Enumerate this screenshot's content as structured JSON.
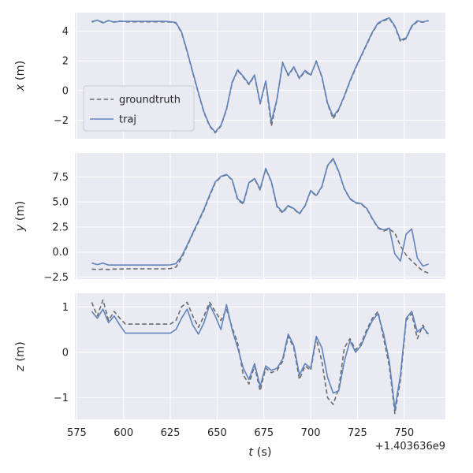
{
  "figure": {
    "xlabel": "t (s)",
    "x_offset_label": "+1.403636e9",
    "background": "#ffffff",
    "panel_background": "#eaeaf2",
    "grid_color": "#ffffff",
    "text_color": "#262626",
    "legend_face": "#eaeaf2",
    "legend_edge": "#cbcbd6"
  },
  "legend": {
    "items": [
      {
        "label": "groundtruth",
        "color": "#6b6b6b",
        "dashed": true
      },
      {
        "label": "traj",
        "color": "#5f84bb",
        "dashed": false
      }
    ]
  },
  "chart_data": [
    {
      "type": "line",
      "id": "x",
      "ylabel": "x (m)",
      "xlim": [
        574,
        772
      ],
      "ylim": [
        -3.25,
        5.25
      ],
      "x_ticks": [
        575,
        600,
        625,
        650,
        675,
        700,
        725,
        750
      ],
      "x_tick_labels": [
        "575",
        "600",
        "625",
        "650",
        "675",
        "700",
        "725",
        "750"
      ],
      "y_ticks": [
        -2,
        0,
        2,
        4
      ],
      "y_tick_labels": [
        "−2",
        "0",
        "2",
        "4"
      ],
      "x": [
        583,
        586,
        589,
        592,
        595,
        598,
        601,
        604,
        607,
        610,
        613,
        616,
        619,
        622,
        625,
        628,
        631,
        634,
        637,
        640,
        643,
        646,
        649,
        652,
        655,
        658,
        661,
        664,
        667,
        670,
        673,
        676,
        679,
        682,
        685,
        688,
        691,
        694,
        697,
        700,
        703,
        706,
        709,
        712,
        715,
        718,
        721,
        724,
        727,
        730,
        733,
        736,
        739,
        742,
        745,
        748,
        751,
        754,
        757,
        760,
        763
      ],
      "series": [
        {
          "name": "groundtruth",
          "color": "#6b6b6b",
          "dash": "5.5,3.3",
          "values": [
            4.65,
            4.72,
            4.6,
            4.7,
            4.62,
            4.68,
            4.63,
            4.63,
            4.63,
            4.63,
            4.63,
            4.63,
            4.63,
            4.63,
            4.62,
            4.55,
            3.9,
            2.6,
            1.2,
            -0.2,
            -1.5,
            -2.4,
            -2.85,
            -2.4,
            -1.3,
            0.5,
            1.35,
            0.9,
            0.4,
            1.0,
            -0.9,
            0.6,
            -2.4,
            -0.6,
            1.9,
            1.0,
            1.55,
            0.8,
            1.3,
            1.0,
            2.0,
            0.9,
            -0.9,
            -1.9,
            -1.3,
            -0.4,
            0.6,
            1.5,
            2.3,
            3.1,
            3.9,
            4.5,
            4.7,
            4.85,
            4.3,
            3.3,
            3.5,
            4.3,
            4.65,
            4.6,
            4.7
          ]
        },
        {
          "name": "traj",
          "color": "#5f84bb",
          "dash": "",
          "values": [
            4.6,
            4.75,
            4.55,
            4.72,
            4.6,
            4.66,
            4.66,
            4.66,
            4.66,
            4.66,
            4.66,
            4.66,
            4.66,
            4.66,
            4.64,
            4.58,
            3.95,
            2.65,
            1.25,
            -0.15,
            -1.45,
            -2.35,
            -2.8,
            -2.35,
            -1.25,
            0.55,
            1.4,
            0.95,
            0.45,
            1.05,
            -0.85,
            0.65,
            -2.1,
            -0.55,
            1.85,
            1.05,
            1.6,
            0.85,
            1.35,
            1.05,
            1.95,
            0.95,
            -0.85,
            -1.75,
            -1.25,
            -0.35,
            0.65,
            1.55,
            2.35,
            3.15,
            3.95,
            4.55,
            4.75,
            4.9,
            4.35,
            3.4,
            3.55,
            4.35,
            4.7,
            4.62,
            4.72
          ]
        }
      ]
    },
    {
      "type": "line",
      "id": "y",
      "ylabel": "y (m)",
      "xlim": [
        574,
        772
      ],
      "ylim": [
        -2.7,
        9.9
      ],
      "x_ticks": [
        575,
        600,
        625,
        650,
        675,
        700,
        725,
        750
      ],
      "x_tick_labels": [
        "575",
        "600",
        "625",
        "650",
        "675",
        "700",
        "725",
        "750"
      ],
      "y_ticks": [
        -2.5,
        0.0,
        2.5,
        5.0,
        7.5
      ],
      "y_tick_labels": [
        "−2.5",
        "0.0",
        "2.5",
        "5.0",
        "7.5"
      ],
      "x": [
        583,
        586,
        589,
        592,
        595,
        598,
        601,
        604,
        607,
        610,
        613,
        616,
        619,
        622,
        625,
        628,
        631,
        634,
        637,
        640,
        643,
        646,
        649,
        652,
        655,
        658,
        661,
        664,
        667,
        670,
        673,
        676,
        679,
        682,
        685,
        688,
        691,
        694,
        697,
        700,
        703,
        706,
        709,
        712,
        715,
        718,
        721,
        724,
        727,
        730,
        733,
        736,
        739,
        742,
        745,
        748,
        751,
        754,
        757,
        760,
        763
      ],
      "series": [
        {
          "name": "groundtruth",
          "color": "#6b6b6b",
          "dash": "5.5,3.3",
          "values": [
            -1.7,
            -1.75,
            -1.7,
            -1.75,
            -1.7,
            -1.7,
            -1.68,
            -1.68,
            -1.68,
            -1.68,
            -1.68,
            -1.68,
            -1.68,
            -1.68,
            -1.65,
            -1.5,
            -0.6,
            0.6,
            1.8,
            3.0,
            4.2,
            5.6,
            6.9,
            7.5,
            7.7,
            7.2,
            5.2,
            4.8,
            6.9,
            7.3,
            6.2,
            8.3,
            7.0,
            4.5,
            3.9,
            4.6,
            4.3,
            3.8,
            4.6,
            6.1,
            5.6,
            6.5,
            8.6,
            9.3,
            8.0,
            6.3,
            5.3,
            4.9,
            4.8,
            4.3,
            3.3,
            2.4,
            2.1,
            2.3,
            1.9,
            0.6,
            -0.3,
            -0.9,
            -1.4,
            -1.9,
            -2.1
          ]
        },
        {
          "name": "traj",
          "color": "#5f84bb",
          "dash": "",
          "values": [
            -1.1,
            -1.25,
            -1.1,
            -1.3,
            -1.3,
            -1.3,
            -1.3,
            -1.3,
            -1.3,
            -1.3,
            -1.3,
            -1.3,
            -1.3,
            -1.3,
            -1.28,
            -1.15,
            -0.45,
            0.7,
            1.9,
            3.1,
            4.3,
            5.7,
            7.0,
            7.55,
            7.75,
            7.25,
            5.3,
            4.9,
            6.95,
            7.35,
            6.3,
            8.35,
            7.05,
            4.6,
            4.0,
            4.65,
            4.35,
            3.85,
            4.65,
            6.15,
            5.65,
            6.55,
            8.65,
            9.35,
            8.05,
            6.35,
            5.35,
            4.95,
            4.85,
            4.35,
            3.35,
            2.45,
            2.2,
            2.4,
            -0.2,
            -0.9,
            1.8,
            2.3,
            -0.6,
            -1.4,
            -1.2
          ]
        }
      ]
    },
    {
      "type": "line",
      "id": "z",
      "ylabel": "z (m)",
      "xlim": [
        574,
        772
      ],
      "ylim": [
        -1.48,
        1.3
      ],
      "x_ticks": [
        575,
        600,
        625,
        650,
        675,
        700,
        725,
        750
      ],
      "x_tick_labels": [
        "575",
        "600",
        "625",
        "650",
        "675",
        "700",
        "725",
        "750"
      ],
      "y_ticks": [
        -1,
        0,
        1
      ],
      "y_tick_labels": [
        "−1",
        "0",
        "1"
      ],
      "x": [
        583,
        586,
        589,
        592,
        595,
        598,
        601,
        604,
        607,
        610,
        613,
        616,
        619,
        622,
        625,
        628,
        631,
        634,
        637,
        640,
        643,
        646,
        649,
        652,
        655,
        658,
        661,
        664,
        667,
        670,
        673,
        676,
        679,
        682,
        685,
        688,
        691,
        694,
        697,
        700,
        703,
        706,
        709,
        712,
        715,
        718,
        721,
        724,
        727,
        730,
        733,
        736,
        739,
        742,
        745,
        748,
        751,
        754,
        757,
        760,
        763
      ],
      "series": [
        {
          "name": "groundtruth",
          "color": "#6b6b6b",
          "dash": "5.5,3.3",
          "values": [
            1.1,
            0.8,
            1.15,
            0.7,
            0.9,
            0.75,
            0.62,
            0.62,
            0.62,
            0.62,
            0.62,
            0.62,
            0.62,
            0.62,
            0.62,
            0.7,
            1.0,
            1.1,
            0.8,
            0.55,
            0.8,
            1.1,
            0.9,
            0.7,
            0.95,
            0.55,
            0.2,
            -0.5,
            -0.7,
            -0.3,
            -0.85,
            -0.35,
            -0.45,
            -0.4,
            -0.2,
            0.35,
            0.1,
            -0.6,
            -0.3,
            -0.4,
            0.3,
            -0.2,
            -1.0,
            -1.15,
            -0.8,
            0.1,
            0.3,
            0.05,
            0.2,
            0.5,
            0.75,
            0.9,
            0.3,
            -0.3,
            -1.35,
            -0.6,
            0.7,
            0.85,
            0.3,
            0.6,
            0.35
          ]
        },
        {
          "name": "traj",
          "color": "#5f84bb",
          "dash": "",
          "values": [
            0.9,
            0.75,
            0.95,
            0.65,
            0.8,
            0.6,
            0.42,
            0.42,
            0.42,
            0.42,
            0.42,
            0.42,
            0.42,
            0.42,
            0.42,
            0.5,
            0.75,
            0.95,
            0.6,
            0.4,
            0.65,
            1.05,
            0.8,
            0.5,
            1.05,
            0.5,
            0.1,
            -0.35,
            -0.6,
            -0.25,
            -0.75,
            -0.3,
            -0.4,
            -0.35,
            -0.15,
            0.4,
            0.15,
            -0.5,
            -0.25,
            -0.35,
            0.35,
            0.1,
            -0.55,
            -0.9,
            -0.85,
            -0.2,
            0.25,
            0.0,
            0.15,
            0.45,
            0.7,
            0.85,
            0.4,
            -0.2,
            -1.25,
            -0.5,
            0.75,
            0.9,
            0.45,
            0.55,
            0.4
          ]
        }
      ]
    }
  ]
}
